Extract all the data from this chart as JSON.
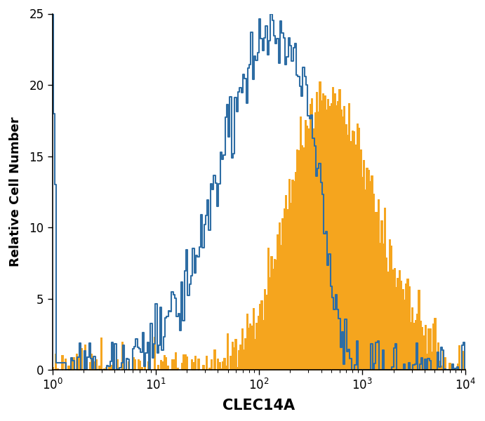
{
  "title": "",
  "xlabel": "CLEC14A",
  "ylabel": "Relative Cell Number",
  "xlim_log": [
    1,
    10000
  ],
  "ylim": [
    0,
    25
  ],
  "yticks": [
    0,
    5,
    10,
    15,
    20,
    25
  ],
  "blue_color": "#2e6da4",
  "orange_color": "#f5a51e",
  "background_color": "#ffffff",
  "xlabel_fontsize": 15,
  "ylabel_fontsize": 13,
  "tick_fontsize": 12,
  "figsize": [
    6.91,
    6.0
  ],
  "dpi": 100
}
